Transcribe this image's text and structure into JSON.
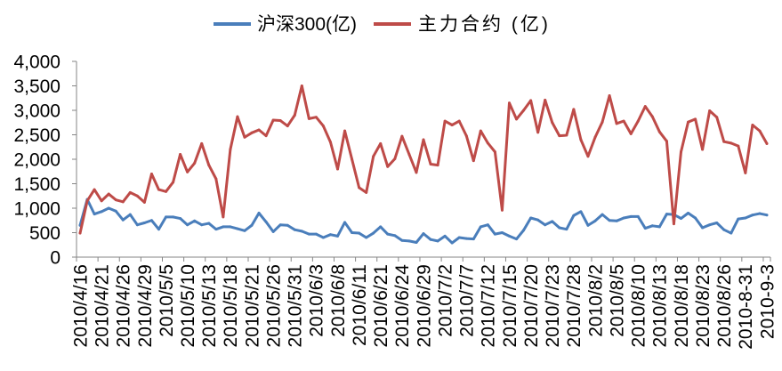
{
  "chart_data": {
    "type": "line",
    "ylim": [
      0,
      4000
    ],
    "yticks": [
      "0",
      "500",
      "1,000",
      "1,500",
      "2,000",
      "2,500",
      "3,000",
      "3,500",
      "4,000"
    ],
    "x_tick_labels": [
      "2010/4/16",
      "2010/4/21",
      "2010/4/26",
      "2010/4/29",
      "2010/5/5",
      "2010/5/10",
      "2010/5/13",
      "2010/5/18",
      "2010/5/21",
      "2010/5/26",
      "2010/5/31",
      "2010/6/3",
      "2010/6/8",
      "2010/6/11",
      "2010/6/21",
      "2010/6/24",
      "2010/6/29",
      "2010/7/2",
      "2010/7/7",
      "2010/7/12",
      "2010/7/15",
      "2010/7/20",
      "2010/7/23",
      "2010/7/28",
      "2010/8/2",
      "2010/8/5",
      "2010/8/10",
      "2010/8/13",
      "2010/8/18",
      "2010/8/23",
      "2010/8/26",
      "2010-8-31",
      "2010-9-3"
    ],
    "grid": false,
    "legend": "top",
    "series": [
      {
        "name": "沪深300(亿)",
        "color": "#4A7EBB",
        "values": [
          650,
          1180,
          880,
          930,
          1000,
          940,
          760,
          870,
          660,
          700,
          750,
          570,
          820,
          820,
          790,
          660,
          740,
          660,
          690,
          570,
          620,
          620,
          580,
          540,
          650,
          900,
          720,
          520,
          660,
          650,
          560,
          530,
          470,
          470,
          400,
          460,
          430,
          710,
          500,
          490,
          400,
          490,
          620,
          470,
          440,
          340,
          330,
          300,
          480,
          360,
          330,
          430,
          290,
          400,
          380,
          370,
          620,
          660,
          470,
          500,
          430,
          370,
          550,
          800,
          760,
          660,
          730,
          600,
          570,
          850,
          930,
          650,
          740,
          870,
          750,
          740,
          800,
          830,
          830,
          590,
          640,
          620,
          880,
          870,
          790,
          900,
          800,
          600,
          660,
          700,
          560,
          490,
          780,
          800,
          860,
          890,
          860
        ]
      },
      {
        "name": "主力合约 (亿)",
        "color": "#BE4B48",
        "values": [
          490,
          1150,
          1380,
          1150,
          1290,
          1170,
          1130,
          1320,
          1250,
          1120,
          1700,
          1380,
          1340,
          1530,
          2100,
          1740,
          1920,
          2320,
          1880,
          1600,
          820,
          2200,
          2870,
          2450,
          2540,
          2600,
          2480,
          2800,
          2790,
          2680,
          2900,
          3500,
          2830,
          2860,
          2680,
          2350,
          1800,
          2580,
          2000,
          1420,
          1320,
          2060,
          2320,
          1850,
          2010,
          2470,
          2100,
          1730,
          2400,
          1900,
          1880,
          2780,
          2700,
          2780,
          2480,
          1970,
          2580,
          2330,
          2150,
          960,
          3150,
          2820,
          3000,
          3200,
          2550,
          3210,
          2750,
          2480,
          2490,
          3020,
          2400,
          2060,
          2450,
          2760,
          3300,
          2730,
          2780,
          2520,
          2780,
          3080,
          2870,
          2560,
          2370,
          680,
          2150,
          2760,
          2820,
          2200,
          2990,
          2860,
          2360,
          2330,
          2270,
          1720,
          2700,
          2580,
          2320
        ]
      }
    ]
  }
}
